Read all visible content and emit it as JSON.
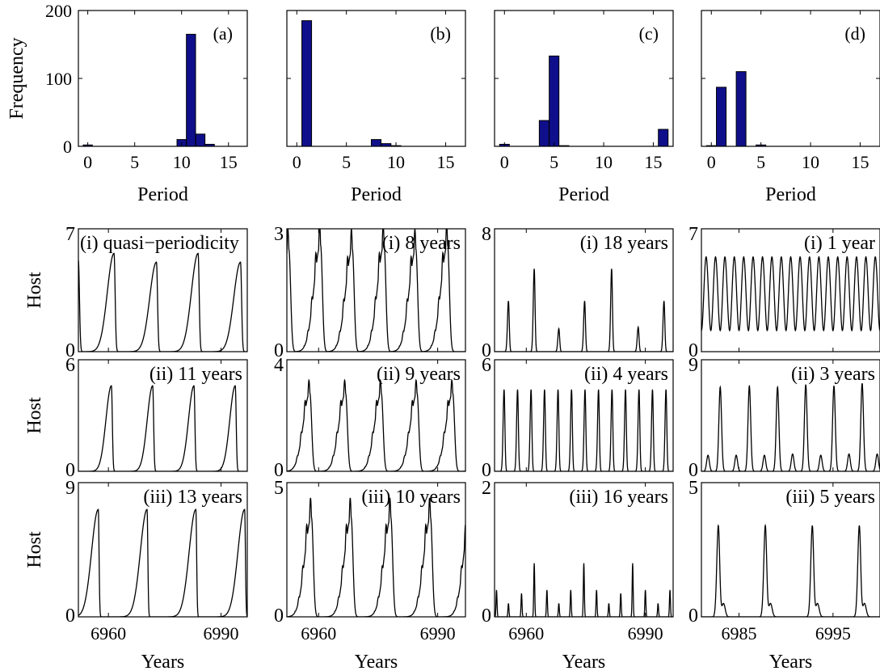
{
  "chart_data": [
    {
      "type": "bar",
      "panel": "(a)",
      "xlabel": "Period",
      "ylabel": "Frequency",
      "categories": [
        0,
        1,
        2,
        3,
        4,
        5,
        6,
        7,
        8,
        9,
        10,
        11,
        12,
        13,
        14,
        15,
        16
      ],
      "values": [
        2,
        0,
        0,
        0,
        0,
        0,
        0,
        0,
        0,
        0,
        10,
        165,
        18,
        3,
        0,
        0,
        0
      ],
      "xlim": [
        -1,
        17
      ],
      "ylim": [
        0,
        200
      ],
      "xticks": [
        "0",
        "5",
        "10",
        "15"
      ],
      "yticks": [
        "0",
        "100",
        "200"
      ],
      "bar_color": "#0f0f8c"
    },
    {
      "type": "bar",
      "panel": "(b)",
      "xlabel": "Period",
      "ylabel": "",
      "categories": [
        0,
        1,
        2,
        3,
        4,
        5,
        6,
        7,
        8,
        9,
        10,
        11,
        12,
        13,
        14,
        15,
        16
      ],
      "values": [
        0,
        185,
        0,
        0,
        0,
        0,
        0,
        0,
        10,
        4,
        1,
        0,
        0,
        0,
        0,
        0,
        0
      ],
      "xlim": [
        -1,
        17
      ],
      "ylim": [
        0,
        200
      ],
      "xticks": [
        "0",
        "5",
        "10",
        "15"
      ],
      "yticks": [],
      "bar_color": "#0f0f8c"
    },
    {
      "type": "bar",
      "panel": "(c)",
      "xlabel": "Period",
      "ylabel": "",
      "categories": [
        0,
        1,
        2,
        3,
        4,
        5,
        6,
        7,
        8,
        9,
        10,
        11,
        12,
        13,
        14,
        15,
        16
      ],
      "values": [
        3,
        0,
        0,
        0,
        38,
        133,
        1,
        0,
        0,
        0,
        0,
        0,
        0,
        0,
        0,
        0,
        25
      ],
      "xlim": [
        -1,
        17
      ],
      "ylim": [
        0,
        200
      ],
      "xticks": [
        "0",
        "5",
        "10",
        "15"
      ],
      "yticks": [],
      "bar_color": "#0f0f8c"
    },
    {
      "type": "bar",
      "panel": "(d)",
      "xlabel": "Period",
      "ylabel": "",
      "categories": [
        0,
        1,
        2,
        3,
        4,
        5,
        6,
        7,
        8,
        9,
        10,
        11,
        12,
        13,
        14,
        15,
        16
      ],
      "values": [
        1,
        87,
        0,
        110,
        0,
        2,
        0,
        0,
        0,
        0,
        0,
        0,
        0,
        0,
        0,
        0,
        0
      ],
      "xlim": [
        -1,
        17
      ],
      "ylim": [
        0,
        200
      ],
      "xticks": [
        "0",
        "5",
        "10",
        "15"
      ],
      "yticks": [],
      "bar_color": "#0f0f8c"
    },
    {
      "type": "line",
      "label": "(i) quasi−periodicity",
      "ylabel": "Host",
      "xlabel": "",
      "ylim": [
        0,
        7
      ],
      "ytick_labels": [
        "0",
        "7"
      ],
      "xlim": [
        6952,
        6997
      ],
      "xtick_labels": [],
      "peak_years": [
        6952,
        6961.5,
        6972.8,
        6983.9,
        6995.2
      ],
      "peak_heights": [
        5.2,
        5.6,
        5.1,
        5.6,
        5.1
      ],
      "rise_years": 3.2,
      "fall_years": 0.7
    },
    {
      "type": "line",
      "label": "(i) 8 years",
      "ylabel": "",
      "xlabel": "",
      "ylim": [
        0,
        3
      ],
      "ytick_labels": [
        "0",
        "3"
      ],
      "xlim": [
        6952,
        6997
      ],
      "xtick_labels": [],
      "peak_years": [
        6952.5,
        6960.5,
        6968.5,
        6976.5,
        6984.5,
        6992.5
      ],
      "peak_heights": [
        2.5,
        2.6,
        2.5,
        2.6,
        2.5,
        2.6
      ],
      "rise_years": 3.0,
      "fall_years": 1.1,
      "ripple": 0.35
    },
    {
      "type": "line",
      "label": "(i) 18 years",
      "ylabel": "",
      "xlabel": "",
      "ylim": [
        0,
        8
      ],
      "ytick_labels": [
        "0",
        "8"
      ],
      "xlim": [
        6952,
        6997
      ],
      "xtick_labels": [],
      "peak_years": [
        6955.5,
        6962,
        6968.2,
        6974.7,
        6981.5,
        6988.2,
        6994.7
      ],
      "peak_heights": [
        3.3,
        5.4,
        1.5,
        3.3,
        5.4,
        1.6,
        3.3
      ],
      "rise_years": 0.6,
      "fall_years": 0.5
    },
    {
      "type": "line",
      "label": "(i) 1 year",
      "ylabel": "",
      "xlabel": "",
      "ylim": [
        0,
        7
      ],
      "ytick_labels": [
        "0",
        "7"
      ],
      "xlim": [
        6981,
        7000
      ],
      "xtick_labels": [],
      "period_years": 1,
      "first_peak_year": 6981.5,
      "wave_min": 1.2,
      "wave_max": 5.4
    },
    {
      "type": "line",
      "label": "(ii) 11 years",
      "ylabel": "Host",
      "xlabel": "",
      "ylim": [
        0,
        6
      ],
      "ytick_labels": [
        "0",
        "6"
      ],
      "xlim": [
        6952,
        6997
      ],
      "xtick_labels": [],
      "peak_years": [
        6960.8,
        6971.8,
        6982.8,
        6993.8
      ],
      "peak_heights": [
        4.6,
        4.6,
        4.6,
        4.6
      ],
      "rise_years": 2.6,
      "fall_years": 0.6
    },
    {
      "type": "line",
      "label": "(ii) 9 years",
      "ylabel": "",
      "xlabel": "",
      "ylim": [
        0,
        4
      ],
      "ytick_labels": [
        "0",
        "4"
      ],
      "xlim": [
        6952,
        6997
      ],
      "xtick_labels": [],
      "peak_years": [
        6957.8,
        6966.8,
        6975.8,
        6984.8,
        6993.8,
        7002.8
      ],
      "peak_heights": [
        2.8,
        2.8,
        2.8,
        2.8,
        2.8,
        2.8
      ],
      "rise_years": 3.0,
      "fall_years": 1.1,
      "ripple": 0.3
    },
    {
      "type": "line",
      "label": "(ii) 4 years",
      "ylabel": "",
      "xlabel": "",
      "ylim": [
        0,
        6
      ],
      "ytick_labels": [
        "0",
        "6"
      ],
      "xlim": [
        6952,
        6997
      ],
      "xtick_labels": [],
      "peak_years": [
        6954.4,
        6957.8,
        6961.2,
        6964.6,
        6968,
        6971.4,
        6974.8,
        6978.2,
        6981.6,
        6985,
        6988.4,
        6991.8,
        6995.2
      ],
      "peak_heights": [
        4.4,
        4.4,
        4.4,
        4.4,
        4.4,
        4.4,
        4.4,
        4.4,
        4.4,
        4.4,
        4.4,
        4.4,
        4.4
      ],
      "rise_years": 0.6,
      "fall_years": 0.5
    },
    {
      "type": "line",
      "label": "(ii) 3 years",
      "ylabel": "",
      "xlabel": "",
      "ylim": [
        0,
        9
      ],
      "ytick_labels": [
        "0",
        "9"
      ],
      "xlim": [
        6981,
        7000
      ],
      "xtick_labels": [],
      "peak_years": [
        6981.7,
        6983.0,
        6984.7,
        6986.1,
        6987.7,
        6989.1,
        6990.7,
        6992.1,
        6993.7,
        6995.1,
        6996.7,
        6998.1,
        6999.7
      ],
      "peak_heights": [
        1.3,
        6.8,
        1.3,
        6.9,
        1.3,
        6.8,
        1.4,
        7.0,
        1.3,
        6.9,
        1.4,
        7.1,
        1.4
      ],
      "rise_years": 0.35,
      "fall_years": 0.35
    },
    {
      "type": "line",
      "label": "(iii) 13 years",
      "ylabel": "Host",
      "xlabel": "Years",
      "ylim": [
        0,
        9
      ],
      "ytick_labels": [
        "0",
        "9"
      ],
      "xlim": [
        6952,
        6997
      ],
      "xtick_labels": [
        "6960",
        "6990"
      ],
      "peak_years": [
        6957.3,
        6970.3,
        6983.3,
        6996.3
      ],
      "peak_heights": [
        7.2,
        7.2,
        7.2,
        7.2
      ],
      "rise_years": 3.2,
      "fall_years": 0.5
    },
    {
      "type": "line",
      "label": "(iii) 10 years",
      "ylabel": "",
      "xlabel": "Years",
      "ylim": [
        0,
        5
      ],
      "ytick_labels": [
        "0",
        "5"
      ],
      "xlim": [
        6952,
        6997
      ],
      "xtick_labels": [
        "6960",
        "6990"
      ],
      "peak_years": [
        6958.2,
        6968.2,
        6978.2,
        6988.2,
        6998.2
      ],
      "peak_heights": [
        3.7,
        3.7,
        3.7,
        3.7,
        3.7
      ],
      "rise_years": 3.0,
      "fall_years": 1.1,
      "ripple": 0.35
    },
    {
      "type": "line",
      "label": "(iii) 16 years",
      "ylabel": "",
      "xlabel": "Years",
      "ylim": [
        0,
        2
      ],
      "ytick_labels": [
        "0",
        "2"
      ],
      "xlim": [
        6952,
        6997
      ],
      "xtick_labels": [
        "6960",
        "6990"
      ],
      "peak_years": [
        6952.5,
        6955.5,
        6958.8,
        6962,
        6965.2,
        6968.2,
        6971.2,
        6974.5,
        6977.7,
        6980.8,
        6983.8,
        6986.8,
        6990,
        6993.2,
        6996.2
      ],
      "peak_heights": [
        0.4,
        0.2,
        0.35,
        0.8,
        0.4,
        0.2,
        0.4,
        0.8,
        0.4,
        0.2,
        0.35,
        0.8,
        0.4,
        0.2,
        0.4
      ],
      "rise_years": 0.3,
      "fall_years": 0.3
    },
    {
      "type": "line",
      "label": "(iii) 5 years",
      "ylabel": "",
      "xlabel": "Years",
      "ylim": [
        0,
        5
      ],
      "ytick_labels": [
        "0",
        "5"
      ],
      "xlim": [
        6981,
        7000
      ],
      "xtick_labels": [
        "6985",
        "6995"
      ],
      "peak_years": [
        6982.8,
        6987.8,
        6992.8,
        6997.8
      ],
      "peak_heights": [
        3.4,
        3.4,
        3.4,
        3.4
      ],
      "rise_years": 0.4,
      "fall_years": 0.35,
      "shoulder": 0.5
    }
  ]
}
